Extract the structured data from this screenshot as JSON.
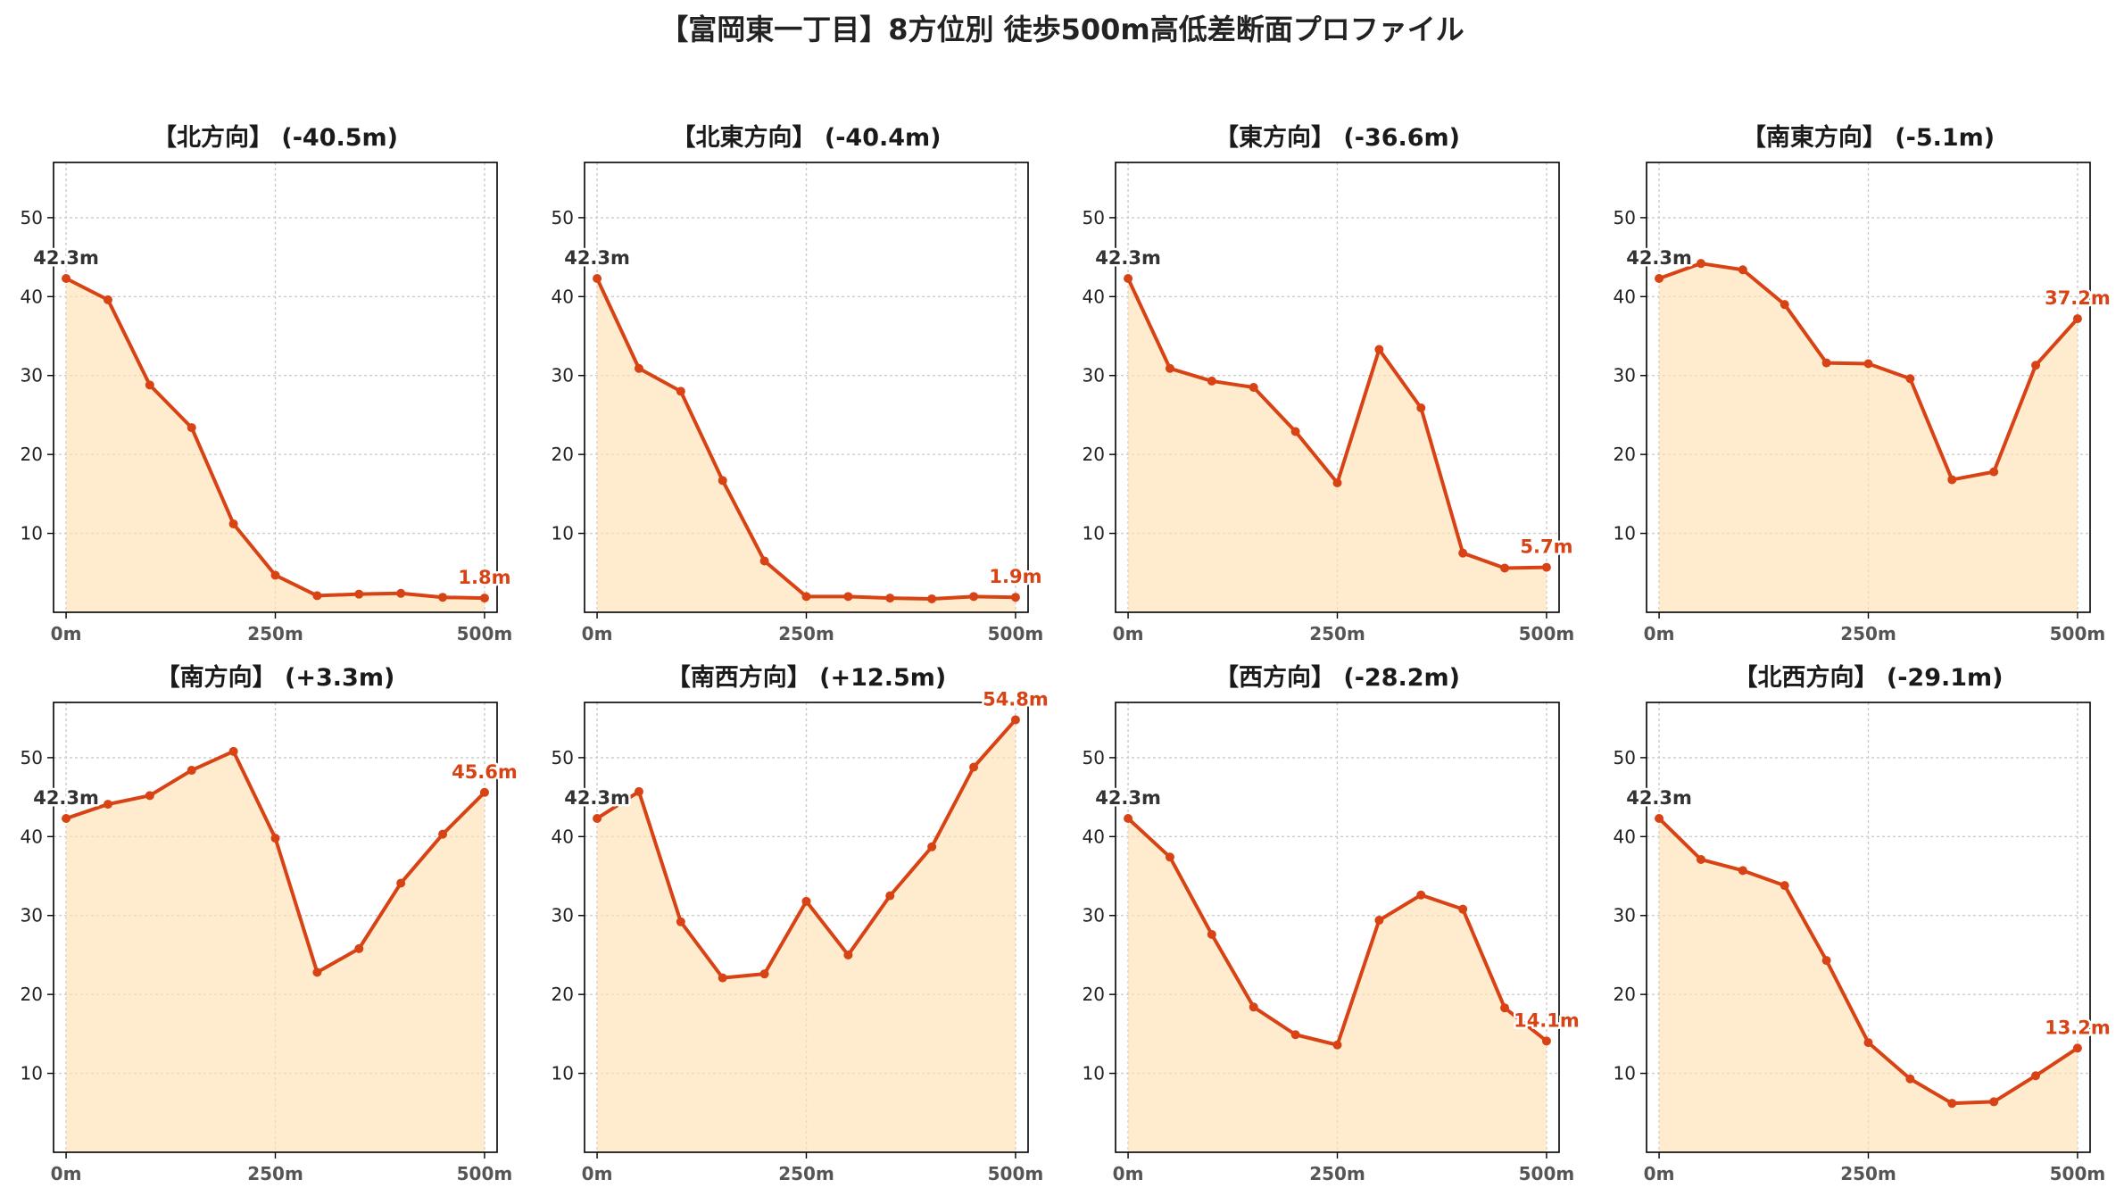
{
  "title": "【富岡東一丁目】8方位別 徒歩500m高低差断面プロファイル",
  "colors": {
    "line": "#D84315",
    "fill": "#FFE0B2",
    "end_label": "#D84315",
    "start_label": "#333333"
  },
  "chart_data": [
    {
      "type": "area",
      "title": "【北方向】 (-40.5m)",
      "x": [
        0,
        50,
        100,
        150,
        200,
        250,
        300,
        350,
        400,
        450,
        500
      ],
      "values": [
        42.3,
        39.6,
        28.8,
        23.4,
        11.2,
        4.7,
        2.1,
        2.3,
        2.4,
        1.9,
        1.8
      ],
      "xticks": [
        "0m",
        "250m",
        "500m"
      ],
      "yticks": [
        10,
        20,
        30,
        40,
        50
      ],
      "xlim": [
        -15,
        515
      ],
      "ylim": [
        0,
        57
      ],
      "start_label": "42.3m",
      "end_label": "1.8m",
      "grid": true
    },
    {
      "type": "area",
      "title": "【北東方向】 (-40.4m)",
      "x": [
        0,
        50,
        100,
        150,
        200,
        250,
        300,
        350,
        400,
        450,
        500
      ],
      "values": [
        42.3,
        30.9,
        28.0,
        16.7,
        6.5,
        2.0,
        2.0,
        1.8,
        1.7,
        2.0,
        1.9
      ],
      "xticks": [
        "0m",
        "250m",
        "500m"
      ],
      "yticks": [
        10,
        20,
        30,
        40,
        50
      ],
      "xlim": [
        -15,
        515
      ],
      "ylim": [
        0,
        57
      ],
      "start_label": "42.3m",
      "end_label": "1.9m",
      "grid": true
    },
    {
      "type": "area",
      "title": "【東方向】 (-36.6m)",
      "x": [
        0,
        50,
        100,
        150,
        200,
        250,
        300,
        350,
        400,
        450,
        500
      ],
      "values": [
        42.3,
        30.9,
        29.3,
        28.5,
        22.9,
        16.4,
        33.3,
        25.9,
        7.5,
        5.6,
        5.7
      ],
      "xticks": [
        "0m",
        "250m",
        "500m"
      ],
      "yticks": [
        10,
        20,
        30,
        40,
        50
      ],
      "xlim": [
        -15,
        515
      ],
      "ylim": [
        0,
        57
      ],
      "start_label": "42.3m",
      "end_label": "5.7m",
      "grid": true
    },
    {
      "type": "area",
      "title": "【南東方向】 (-5.1m)",
      "x": [
        0,
        50,
        100,
        150,
        200,
        250,
        300,
        350,
        400,
        450,
        500
      ],
      "values": [
        42.3,
        44.2,
        43.4,
        39.0,
        31.6,
        31.5,
        29.6,
        16.8,
        17.8,
        31.3,
        37.2
      ],
      "xticks": [
        "0m",
        "250m",
        "500m"
      ],
      "yticks": [
        10,
        20,
        30,
        40,
        50
      ],
      "xlim": [
        -15,
        515
      ],
      "ylim": [
        0,
        57
      ],
      "start_label": "42.3m",
      "end_label": "37.2m",
      "grid": true
    },
    {
      "type": "area",
      "title": "【南方向】 (+3.3m)",
      "x": [
        0,
        50,
        100,
        150,
        200,
        250,
        300,
        350,
        400,
        450,
        500
      ],
      "values": [
        42.3,
        44.1,
        45.2,
        48.4,
        50.8,
        39.8,
        22.8,
        25.8,
        34.1,
        40.3,
        45.6
      ],
      "xticks": [
        "0m",
        "250m",
        "500m"
      ],
      "yticks": [
        10,
        20,
        30,
        40,
        50
      ],
      "xlim": [
        -15,
        515
      ],
      "ylim": [
        0,
        57
      ],
      "start_label": "42.3m",
      "end_label": "45.6m",
      "grid": true
    },
    {
      "type": "area",
      "title": "【南西方向】 (+12.5m)",
      "x": [
        0,
        50,
        100,
        150,
        200,
        250,
        300,
        350,
        400,
        450,
        500
      ],
      "values": [
        42.3,
        45.7,
        29.2,
        22.1,
        22.6,
        31.8,
        25.0,
        32.5,
        38.7,
        48.8,
        54.8
      ],
      "xticks": [
        "0m",
        "250m",
        "500m"
      ],
      "yticks": [
        10,
        20,
        30,
        40,
        50
      ],
      "xlim": [
        -15,
        515
      ],
      "ylim": [
        0,
        57
      ],
      "start_label": "42.3m",
      "end_label": "54.8m",
      "grid": true
    },
    {
      "type": "area",
      "title": "【西方向】 (-28.2m)",
      "x": [
        0,
        50,
        100,
        150,
        200,
        250,
        300,
        350,
        400,
        450,
        500
      ],
      "values": [
        42.3,
        37.4,
        27.6,
        18.4,
        14.9,
        13.6,
        29.4,
        32.6,
        30.8,
        18.3,
        14.1
      ],
      "xticks": [
        "0m",
        "250m",
        "500m"
      ],
      "yticks": [
        10,
        20,
        30,
        40,
        50
      ],
      "xlim": [
        -15,
        515
      ],
      "ylim": [
        0,
        57
      ],
      "start_label": "42.3m",
      "end_label": "14.1m",
      "grid": true
    },
    {
      "type": "area",
      "title": "【北西方向】 (-29.1m)",
      "x": [
        0,
        50,
        100,
        150,
        200,
        250,
        300,
        350,
        400,
        450,
        500
      ],
      "values": [
        42.3,
        37.1,
        35.7,
        33.8,
        24.3,
        13.9,
        9.3,
        6.2,
        6.4,
        9.7,
        13.2
      ],
      "xticks": [
        "0m",
        "250m",
        "500m"
      ],
      "yticks": [
        10,
        20,
        30,
        40,
        50
      ],
      "xlim": [
        -15,
        515
      ],
      "ylim": [
        0,
        57
      ],
      "start_label": "42.3m",
      "end_label": "13.2m",
      "grid": true
    }
  ]
}
